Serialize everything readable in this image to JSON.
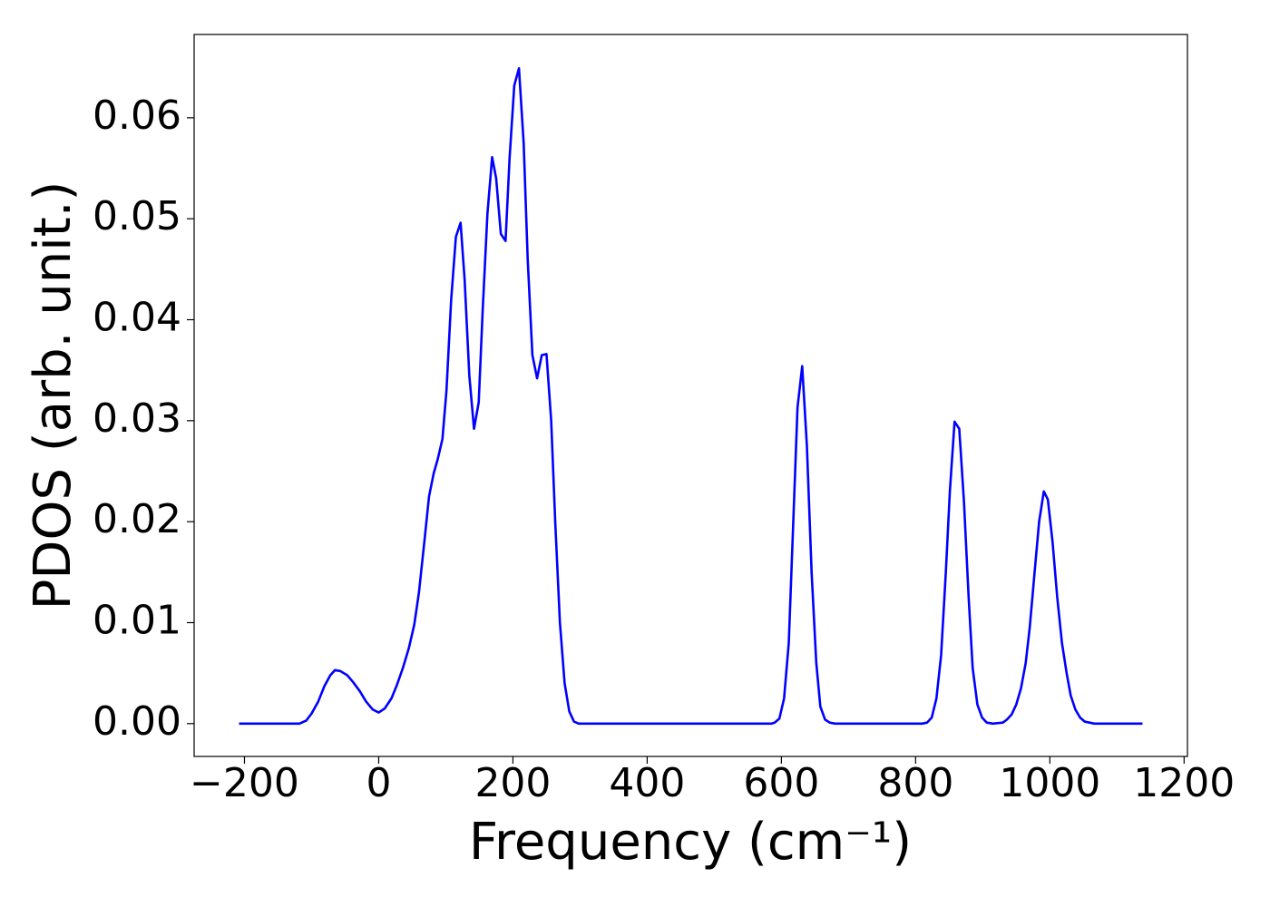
{
  "chart_data": {
    "type": "line",
    "xlabel": "Frequency (cm⁻¹)",
    "ylabel": "PDOS (arb. unit.)",
    "color": "#0000ff",
    "x": [
      -208,
      -130,
      -118,
      -108,
      -100,
      -90,
      -81,
      -72,
      -65,
      -57,
      -47,
      -38,
      -28,
      -19,
      -9,
      0,
      9,
      19,
      27,
      36,
      45,
      53,
      60,
      68,
      75,
      82,
      88,
      95,
      101,
      108,
      115,
      122,
      128,
      135,
      142,
      149,
      155,
      162,
      169,
      175,
      182,
      189,
      195,
      202,
      209,
      216,
      222,
      229,
      236,
      243,
      250,
      257,
      263,
      270,
      277,
      284,
      291,
      298,
      585,
      590,
      597,
      604,
      611,
      618,
      624,
      631,
      638,
      645,
      652,
      658,
      665,
      672,
      680,
      810,
      817,
      824,
      831,
      838,
      845,
      851,
      858,
      865,
      872,
      879,
      885,
      892,
      899,
      906,
      915,
      930,
      936,
      943,
      950,
      957,
      964,
      970,
      977,
      984,
      991,
      997,
      1004,
      1011,
      1018,
      1025,
      1031,
      1038,
      1045,
      1052,
      1059,
      1066,
      1138
    ],
    "values": [
      0,
      0,
      0,
      0.0003,
      0.001,
      0.0022,
      0.0037,
      0.0048,
      0.0053,
      0.0052,
      0.0048,
      0.0041,
      0.0032,
      0.0022,
      0.0014,
      0.0011,
      0.0015,
      0.0025,
      0.0038,
      0.0055,
      0.0075,
      0.0098,
      0.013,
      0.018,
      0.0225,
      0.0248,
      0.0262,
      0.0282,
      0.033,
      0.042,
      0.0482,
      0.0496,
      0.044,
      0.0345,
      0.0292,
      0.0318,
      0.041,
      0.0505,
      0.0561,
      0.054,
      0.0485,
      0.0478,
      0.056,
      0.0632,
      0.0649,
      0.0575,
      0.046,
      0.0365,
      0.0342,
      0.0365,
      0.0366,
      0.03,
      0.02,
      0.01,
      0.004,
      0.0012,
      0.0002,
      0,
      0,
      0.0001,
      0.0005,
      0.0025,
      0.008,
      0.0205,
      0.0313,
      0.0354,
      0.0275,
      0.015,
      0.006,
      0.0017,
      0.0004,
      0.0001,
      0,
      0,
      0.0001,
      0.0006,
      0.0025,
      0.0068,
      0.015,
      0.023,
      0.0299,
      0.0292,
      0.022,
      0.0125,
      0.0055,
      0.0019,
      0.0006,
      0.0001,
      0,
      0.0001,
      0.0004,
      0.0009,
      0.0019,
      0.0035,
      0.006,
      0.0095,
      0.0148,
      0.02,
      0.023,
      0.0222,
      0.018,
      0.0125,
      0.008,
      0.005,
      0.0028,
      0.0014,
      0.0006,
      0.0002,
      0.0001,
      0,
      0
    ],
    "xlim": [
      -275,
      1205
    ],
    "xticks": [
      {
        "value": -200,
        "label": "−200"
      },
      0,
      200,
      400,
      600,
      800,
      1000,
      1200
    ],
    "ylim": [
      -0.00325,
      0.06825
    ],
    "yticks": [
      {
        "value": 0,
        "label": "0.00"
      },
      0.01,
      0.02,
      0.03,
      0.04,
      0.05,
      0.06
    ]
  }
}
